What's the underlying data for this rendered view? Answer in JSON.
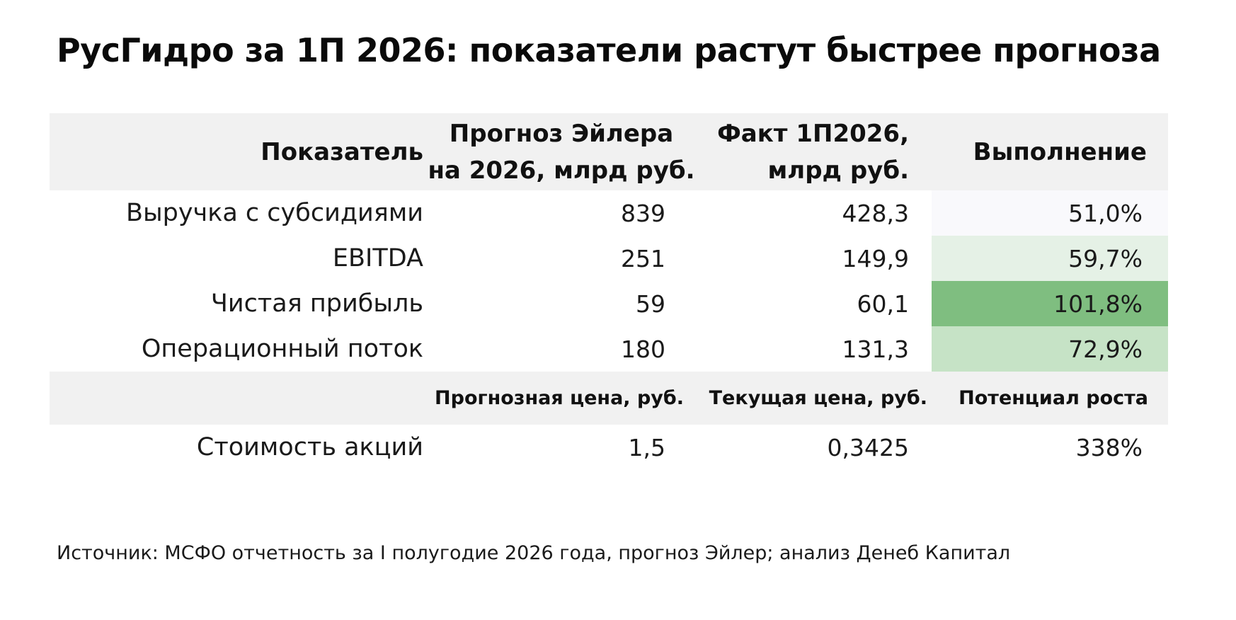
{
  "title": "РусГидро за 1П 2026: показатели растут быстрее прогноза",
  "table": {
    "header": {
      "col1": "Показатель",
      "col2_line1": "Прогноз Эйлера",
      "col2_line2": "на 2026, млрд руб.",
      "col3_line1": "Факт 1П2026,",
      "col3_line2": "млрд руб.",
      "col4": "Выполнение"
    },
    "rows": [
      {
        "name": "Выручка с субсидиями",
        "forecast": "839",
        "fact": "428,3",
        "execution": "51,0%",
        "execution_color": "#f9f9fc"
      },
      {
        "name": "EBITDA",
        "forecast": "251",
        "fact": "149,9",
        "execution": "59,7%",
        "execution_color": "#e5f1e6"
      },
      {
        "name": "Чистая прибыль",
        "forecast": "59",
        "fact": "60,1",
        "execution": "101,8%",
        "execution_color": "#7fbe80"
      },
      {
        "name": "Операционный поток",
        "forecast": "180",
        "fact": "131,3",
        "execution": "72,9%",
        "execution_color": "#c6e3c6"
      }
    ],
    "subheader": {
      "col2": "Прогнозная цена, руб.",
      "col3": "Текущая цена, руб.",
      "col4": "Потенциал роста"
    },
    "price_row": {
      "name": "Стоимость акций",
      "target_price": "1,5",
      "current_price": "0,3425",
      "upside": "338%"
    }
  },
  "source": "Источник: МСФО отчетность за I полугодие 2026 года, прогноз Эйлер; анализ Денеб Капитал"
}
